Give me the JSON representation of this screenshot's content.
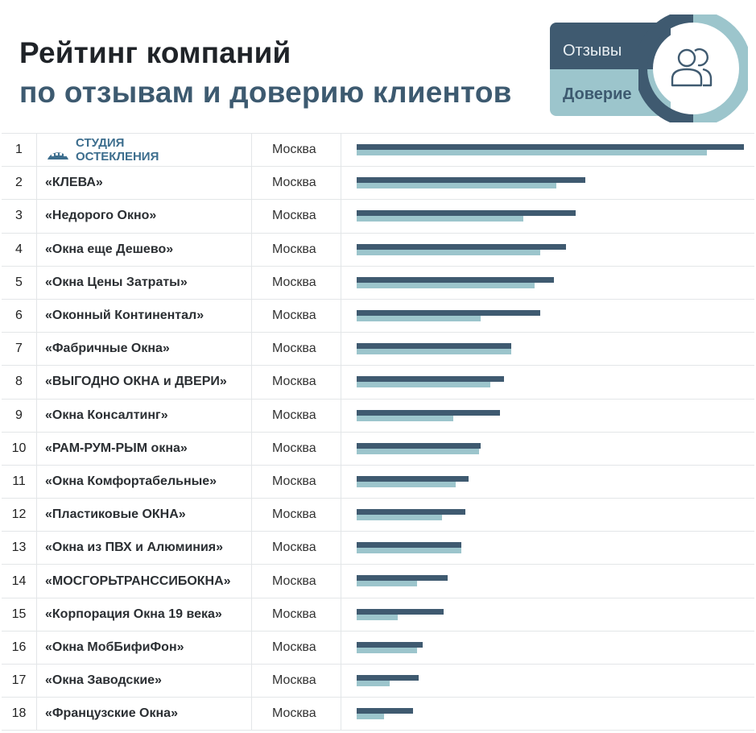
{
  "title": {
    "line1": "Рейтинг компаний",
    "line2": "по отзывам и доверию клиентов"
  },
  "legend": {
    "reviews_label": "Отзывы",
    "trust_label": "Доверие",
    "icon": "users-icon"
  },
  "colors": {
    "reviews": "#3f5a70",
    "trust": "#9cc5cc",
    "title_dark": "#1f2328",
    "title_accent": "#3d5a70"
  },
  "chart_data": {
    "type": "bar",
    "orientation": "horizontal",
    "xlim": [
      0,
      100
    ],
    "categories": [
      "СТУДИЯ ОСТЕКЛЕНИЯ",
      "«КЛЕВА»",
      "«Недорого Окно»",
      "«Окна еще Дешево»",
      "«Окна Цены Затраты»",
      "«Оконный Континентал»",
      "«Фабричные Окна»",
      "«ВЫГОДНО ОКНА и ДВЕРИ»",
      "«Окна Консалтинг»",
      "«РАМ-РУМ-РЫМ окна»",
      "«Окна Комфортабельные»",
      "«Пластиковые ОКНА»",
      "«Окна из ПВХ и Алюминия»",
      "«МОСГОРЬТРАНССИБОКНА»",
      "«Корпорация Окна 19 века»",
      "«Окна МобБифиФон»",
      "«Окна Заводские»",
      "«Французские Окна»"
    ],
    "ranks": [
      "1",
      "2",
      "3",
      "4",
      "5",
      "6",
      "7",
      "8",
      "9",
      "10",
      "11",
      "12",
      "13",
      "14",
      "15",
      "16",
      "17",
      "18"
    ],
    "cities": [
      "Москва",
      "Москва",
      "Москва",
      "Москва",
      "Москва",
      "Москва",
      "Москва",
      "Москва",
      "Москва",
      "Москва",
      "Москва",
      "Москва",
      "Москва",
      "Москва",
      "Москва",
      "Москва",
      "Москва",
      "Москва"
    ],
    "series": [
      {
        "name": "Отзывы",
        "values": [
          100,
          59,
          56.5,
          54,
          51,
          47.5,
          40,
          38,
          37,
          32,
          29,
          28,
          27,
          23.5,
          22.5,
          17,
          16,
          14.5
        ]
      },
      {
        "name": "Доверие",
        "values": [
          90.5,
          51.5,
          43,
          47.5,
          46,
          32,
          40,
          34.5,
          25,
          31.5,
          25.5,
          22,
          27,
          15.5,
          10.5,
          15.5,
          8.5,
          7
        ]
      }
    ]
  }
}
